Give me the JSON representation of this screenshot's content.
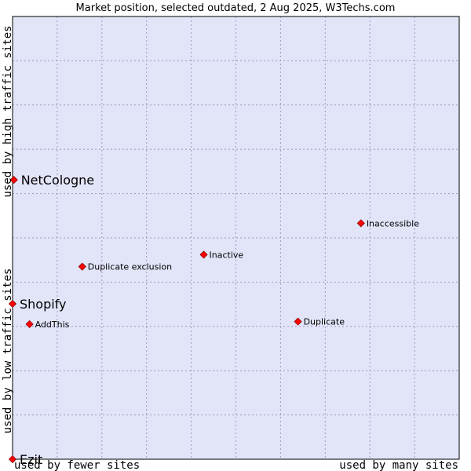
{
  "chart_data": {
    "type": "scatter",
    "title": "Market position, selected outdated, 2 Aug 2025, W3Techs.com",
    "xlabel_left": "used by fewer sites",
    "xlabel_right": "used by many sites",
    "ylabel_bottom": "used by low traffic sites",
    "ylabel_top": "used by high traffic sites",
    "xlim": [
      0,
      100
    ],
    "ylim": [
      0,
      100
    ],
    "grid": true,
    "colors": {
      "plot_bg": "#e2e4f8",
      "grid": "#9a9cc0",
      "border": "#000000",
      "marker": "#ff0000",
      "marker_outline": "#8a0000"
    },
    "points": [
      {
        "label": "NetCologne",
        "x": 0.3,
        "y": 63.1,
        "emphasis": true
      },
      {
        "label": "Shopify",
        "x": 0.0,
        "y": 35.1,
        "emphasis": true
      },
      {
        "label": "Ezit",
        "x": 0.0,
        "y": 0.0,
        "emphasis": true
      },
      {
        "label": "AddThis",
        "x": 3.8,
        "y": 30.5,
        "emphasis": false
      },
      {
        "label": "Duplicate exclusion",
        "x": 15.6,
        "y": 43.5,
        "emphasis": false
      },
      {
        "label": "Inactive",
        "x": 42.8,
        "y": 46.2,
        "emphasis": false
      },
      {
        "label": "Duplicate",
        "x": 63.9,
        "y": 31.1,
        "emphasis": false
      },
      {
        "label": "Inaccessible",
        "x": 78.0,
        "y": 53.3,
        "emphasis": false
      }
    ]
  }
}
